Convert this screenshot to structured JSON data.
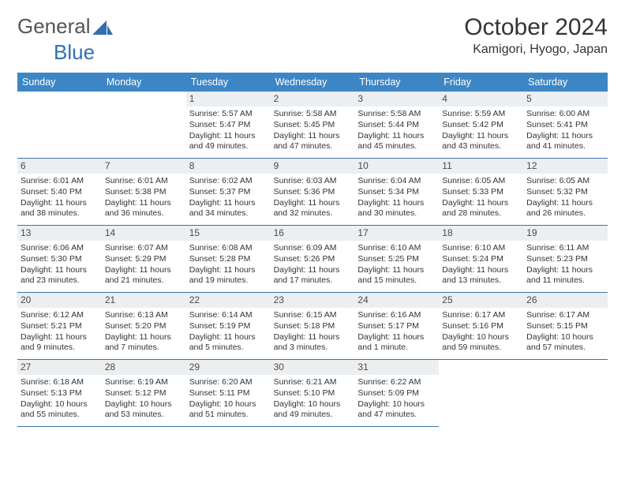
{
  "logo": {
    "general": "General",
    "blue": "Blue"
  },
  "title": "October 2024",
  "location": "Kamigori, Hyogo, Japan",
  "colors": {
    "header_bg": "#3d86c6",
    "header_text": "#ffffff",
    "daynum_bg": "#eceff1",
    "cell_border": "#3d72a6",
    "body_text": "#333333",
    "logo_gray": "#555555",
    "logo_blue": "#2f6fb0"
  },
  "weekdays": [
    "Sunday",
    "Monday",
    "Tuesday",
    "Wednesday",
    "Thursday",
    "Friday",
    "Saturday"
  ],
  "leading_blanks": 2,
  "trailing_blanks": 2,
  "days": [
    {
      "n": "1",
      "sunrise": "Sunrise: 5:57 AM",
      "sunset": "Sunset: 5:47 PM",
      "d1": "Daylight: 11 hours",
      "d2": "and 49 minutes."
    },
    {
      "n": "2",
      "sunrise": "Sunrise: 5:58 AM",
      "sunset": "Sunset: 5:45 PM",
      "d1": "Daylight: 11 hours",
      "d2": "and 47 minutes."
    },
    {
      "n": "3",
      "sunrise": "Sunrise: 5:58 AM",
      "sunset": "Sunset: 5:44 PM",
      "d1": "Daylight: 11 hours",
      "d2": "and 45 minutes."
    },
    {
      "n": "4",
      "sunrise": "Sunrise: 5:59 AM",
      "sunset": "Sunset: 5:42 PM",
      "d1": "Daylight: 11 hours",
      "d2": "and 43 minutes."
    },
    {
      "n": "5",
      "sunrise": "Sunrise: 6:00 AM",
      "sunset": "Sunset: 5:41 PM",
      "d1": "Daylight: 11 hours",
      "d2": "and 41 minutes."
    },
    {
      "n": "6",
      "sunrise": "Sunrise: 6:01 AM",
      "sunset": "Sunset: 5:40 PM",
      "d1": "Daylight: 11 hours",
      "d2": "and 38 minutes."
    },
    {
      "n": "7",
      "sunrise": "Sunrise: 6:01 AM",
      "sunset": "Sunset: 5:38 PM",
      "d1": "Daylight: 11 hours",
      "d2": "and 36 minutes."
    },
    {
      "n": "8",
      "sunrise": "Sunrise: 6:02 AM",
      "sunset": "Sunset: 5:37 PM",
      "d1": "Daylight: 11 hours",
      "d2": "and 34 minutes."
    },
    {
      "n": "9",
      "sunrise": "Sunrise: 6:03 AM",
      "sunset": "Sunset: 5:36 PM",
      "d1": "Daylight: 11 hours",
      "d2": "and 32 minutes."
    },
    {
      "n": "10",
      "sunrise": "Sunrise: 6:04 AM",
      "sunset": "Sunset: 5:34 PM",
      "d1": "Daylight: 11 hours",
      "d2": "and 30 minutes."
    },
    {
      "n": "11",
      "sunrise": "Sunrise: 6:05 AM",
      "sunset": "Sunset: 5:33 PM",
      "d1": "Daylight: 11 hours",
      "d2": "and 28 minutes."
    },
    {
      "n": "12",
      "sunrise": "Sunrise: 6:05 AM",
      "sunset": "Sunset: 5:32 PM",
      "d1": "Daylight: 11 hours",
      "d2": "and 26 minutes."
    },
    {
      "n": "13",
      "sunrise": "Sunrise: 6:06 AM",
      "sunset": "Sunset: 5:30 PM",
      "d1": "Daylight: 11 hours",
      "d2": "and 23 minutes."
    },
    {
      "n": "14",
      "sunrise": "Sunrise: 6:07 AM",
      "sunset": "Sunset: 5:29 PM",
      "d1": "Daylight: 11 hours",
      "d2": "and 21 minutes."
    },
    {
      "n": "15",
      "sunrise": "Sunrise: 6:08 AM",
      "sunset": "Sunset: 5:28 PM",
      "d1": "Daylight: 11 hours",
      "d2": "and 19 minutes."
    },
    {
      "n": "16",
      "sunrise": "Sunrise: 6:09 AM",
      "sunset": "Sunset: 5:26 PM",
      "d1": "Daylight: 11 hours",
      "d2": "and 17 minutes."
    },
    {
      "n": "17",
      "sunrise": "Sunrise: 6:10 AM",
      "sunset": "Sunset: 5:25 PM",
      "d1": "Daylight: 11 hours",
      "d2": "and 15 minutes."
    },
    {
      "n": "18",
      "sunrise": "Sunrise: 6:10 AM",
      "sunset": "Sunset: 5:24 PM",
      "d1": "Daylight: 11 hours",
      "d2": "and 13 minutes."
    },
    {
      "n": "19",
      "sunrise": "Sunrise: 6:11 AM",
      "sunset": "Sunset: 5:23 PM",
      "d1": "Daylight: 11 hours",
      "d2": "and 11 minutes."
    },
    {
      "n": "20",
      "sunrise": "Sunrise: 6:12 AM",
      "sunset": "Sunset: 5:21 PM",
      "d1": "Daylight: 11 hours",
      "d2": "and 9 minutes."
    },
    {
      "n": "21",
      "sunrise": "Sunrise: 6:13 AM",
      "sunset": "Sunset: 5:20 PM",
      "d1": "Daylight: 11 hours",
      "d2": "and 7 minutes."
    },
    {
      "n": "22",
      "sunrise": "Sunrise: 6:14 AM",
      "sunset": "Sunset: 5:19 PM",
      "d1": "Daylight: 11 hours",
      "d2": "and 5 minutes."
    },
    {
      "n": "23",
      "sunrise": "Sunrise: 6:15 AM",
      "sunset": "Sunset: 5:18 PM",
      "d1": "Daylight: 11 hours",
      "d2": "and 3 minutes."
    },
    {
      "n": "24",
      "sunrise": "Sunrise: 6:16 AM",
      "sunset": "Sunset: 5:17 PM",
      "d1": "Daylight: 11 hours",
      "d2": "and 1 minute."
    },
    {
      "n": "25",
      "sunrise": "Sunrise: 6:17 AM",
      "sunset": "Sunset: 5:16 PM",
      "d1": "Daylight: 10 hours",
      "d2": "and 59 minutes."
    },
    {
      "n": "26",
      "sunrise": "Sunrise: 6:17 AM",
      "sunset": "Sunset: 5:15 PM",
      "d1": "Daylight: 10 hours",
      "d2": "and 57 minutes."
    },
    {
      "n": "27",
      "sunrise": "Sunrise: 6:18 AM",
      "sunset": "Sunset: 5:13 PM",
      "d1": "Daylight: 10 hours",
      "d2": "and 55 minutes."
    },
    {
      "n": "28",
      "sunrise": "Sunrise: 6:19 AM",
      "sunset": "Sunset: 5:12 PM",
      "d1": "Daylight: 10 hours",
      "d2": "and 53 minutes."
    },
    {
      "n": "29",
      "sunrise": "Sunrise: 6:20 AM",
      "sunset": "Sunset: 5:11 PM",
      "d1": "Daylight: 10 hours",
      "d2": "and 51 minutes."
    },
    {
      "n": "30",
      "sunrise": "Sunrise: 6:21 AM",
      "sunset": "Sunset: 5:10 PM",
      "d1": "Daylight: 10 hours",
      "d2": "and 49 minutes."
    },
    {
      "n": "31",
      "sunrise": "Sunrise: 6:22 AM",
      "sunset": "Sunset: 5:09 PM",
      "d1": "Daylight: 10 hours",
      "d2": "and 47 minutes."
    }
  ]
}
